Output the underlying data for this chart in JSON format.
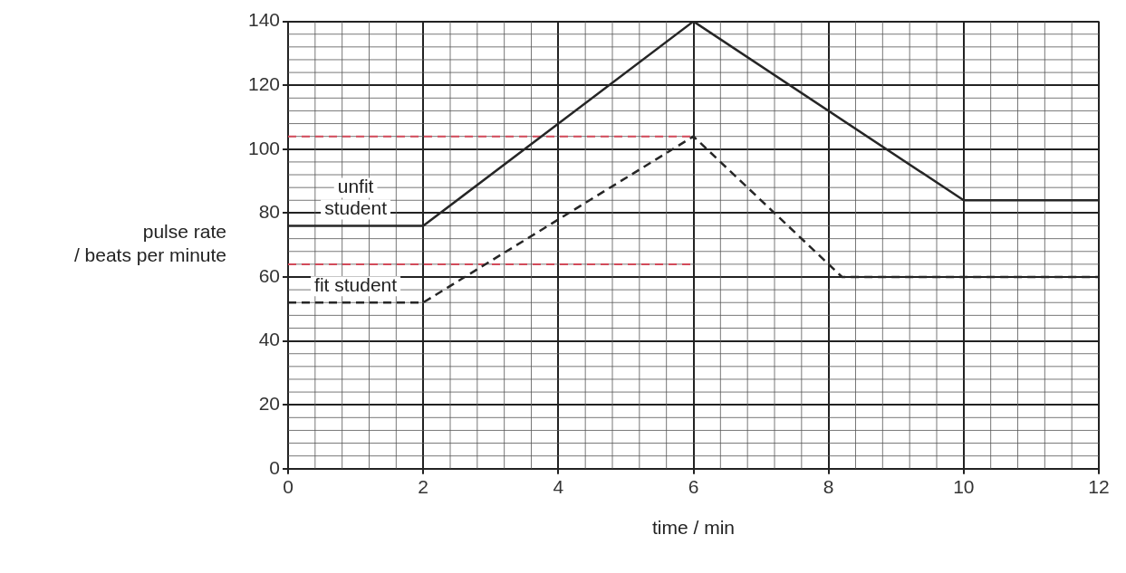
{
  "chart_data": {
    "type": "line",
    "xlabel": "time / min",
    "ylabel": "pulse rate\n/ beats per minute",
    "xlim": [
      0,
      12
    ],
    "ylim": [
      0,
      140
    ],
    "xticks": [
      0,
      2,
      4,
      6,
      8,
      10,
      12
    ],
    "yticks": [
      0,
      20,
      40,
      60,
      80,
      100,
      120,
      140
    ],
    "grid": true,
    "legend": false,
    "marker": "none",
    "series": [
      {
        "name": "unfit student",
        "color": "#262626",
        "x": [
          0,
          2,
          6,
          10,
          12
        ],
        "values": [
          76,
          76,
          140,
          84,
          84
        ],
        "line_style": "solid"
      },
      {
        "name": "fit student",
        "color": "#262626",
        "x": [
          0,
          2,
          6,
          8.2,
          12
        ],
        "values": [
          52,
          52,
          104,
          60,
          60
        ],
        "line_style": "dashed"
      }
    ],
    "ref_lines": [
      {
        "axis": "y",
        "value": 104,
        "color": "#d24a5a",
        "line_style": "dashed"
      },
      {
        "axis": "y",
        "value": 64,
        "color": "#d24a5a",
        "line_style": "dashed"
      }
    ]
  }
}
